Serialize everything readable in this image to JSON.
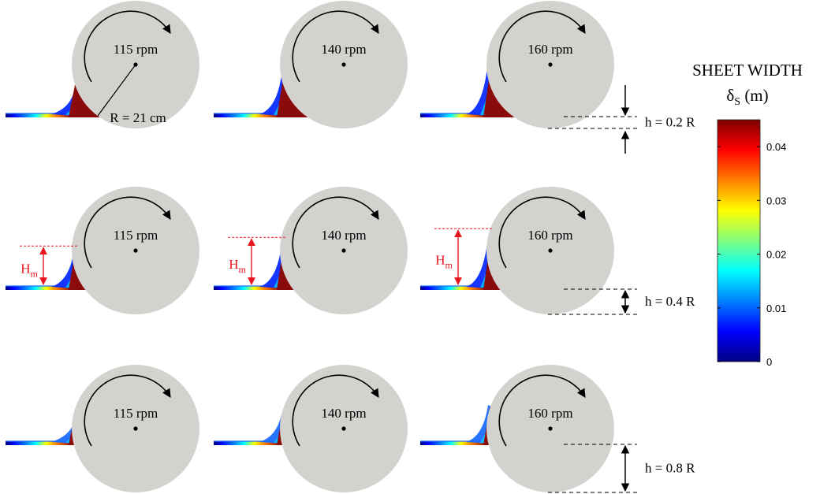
{
  "rows": [
    {
      "id": "row-1",
      "h_label": "h =  0.2 R",
      "show_hm": false,
      "panels": [
        {
          "speed": "115 rpm",
          "radius_label": "R = 21 cm",
          "wave": 0.15
        },
        {
          "speed": "140 rpm",
          "wave": 0.55
        },
        {
          "speed": "160 rpm",
          "wave": 0.85
        }
      ]
    },
    {
      "id": "row-2",
      "h_label": "h =  0.4 R",
      "show_hm": true,
      "panels": [
        {
          "speed": "115 rpm",
          "hm_main": "H",
          "hm_sub": "m",
          "wave": 0.45
        },
        {
          "speed": "140 rpm",
          "hm_main": "H",
          "hm_sub": "m",
          "wave": 0.65
        },
        {
          "speed": "160 rpm",
          "hm_main": "H",
          "hm_sub": "m",
          "wave": 0.85
        }
      ]
    },
    {
      "id": "row-3",
      "h_label": "h =  0.8 R",
      "show_hm": false,
      "panels": [
        {
          "speed": "115 rpm",
          "wave": 0.1
        },
        {
          "speed": "140 rpm",
          "wave": 0.3
        },
        {
          "speed": "160 rpm",
          "wave": 0.5
        }
      ]
    }
  ],
  "colorbar": {
    "title_line1": "SHEET WIDTH",
    "symbol": "δ",
    "symbol_sub": "S",
    "unit": "(m)",
    "ticks": [
      "0.04",
      "0.03",
      "0.02",
      "0.01",
      "0"
    ],
    "tick_values": [
      0.04,
      0.03,
      0.02,
      0.01,
      0
    ],
    "range": [
      0,
      0.045
    ],
    "colors": [
      "#00007f",
      "#0000ff",
      "#0080ff",
      "#00ffff",
      "#80ff80",
      "#ffff00",
      "#ff8000",
      "#ff0000",
      "#7f0000"
    ]
  },
  "colors": {
    "disk": "#d3d2cf",
    "red_annotation": "#e8141c",
    "deposit": "#8b0a0a"
  }
}
